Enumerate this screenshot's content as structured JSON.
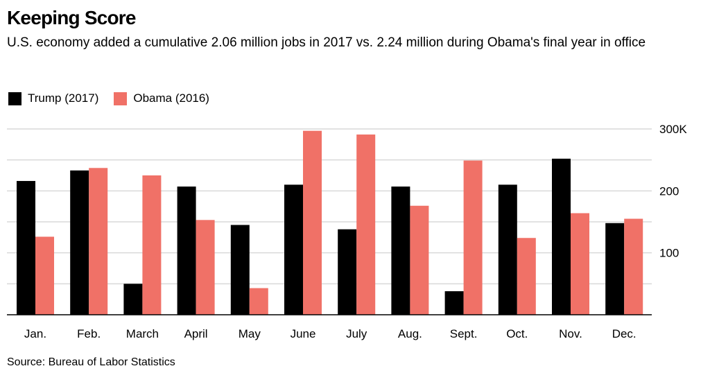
{
  "header": {
    "title": "Keeping Score",
    "subtitle": "U.S. economy added a cumulative 2.06 million jobs in 2017 vs. 2.24 million during Obama's final year in office"
  },
  "source": "Source: Bureau of Labor Statistics",
  "chart_data": {
    "type": "bar",
    "title": "Keeping Score",
    "subtitle": "U.S. economy added a cumulative 2.06 million jobs in 2017 vs. 2.24 million during Obama's final year in office",
    "xlabel": "",
    "ylabel": "",
    "categories": [
      "Jan.",
      "Feb.",
      "March",
      "April",
      "May",
      "June",
      "July",
      "Aug.",
      "Sept.",
      "Oct.",
      "Nov.",
      "Dec."
    ],
    "series": [
      {
        "name": "Trump (2017)",
        "color": "#000000",
        "values": [
          216,
          233,
          50,
          207,
          145,
          210,
          138,
          207,
          38,
          210,
          252,
          148
        ]
      },
      {
        "name": "Obama (2016)",
        "color": "#f07167",
        "values": [
          126,
          237,
          225,
          153,
          43,
          297,
          291,
          176,
          249,
          124,
          164,
          155
        ]
      }
    ],
    "ylim": [
      0,
      300
    ],
    "yticks": [
      {
        "value": 300,
        "label": "300K"
      },
      {
        "value": 200,
        "label": "200"
      },
      {
        "value": 100,
        "label": "100"
      }
    ],
    "gridlines": [
      50,
      100,
      150,
      200,
      250,
      300
    ],
    "grid": true,
    "legend_position": "top-left"
  }
}
